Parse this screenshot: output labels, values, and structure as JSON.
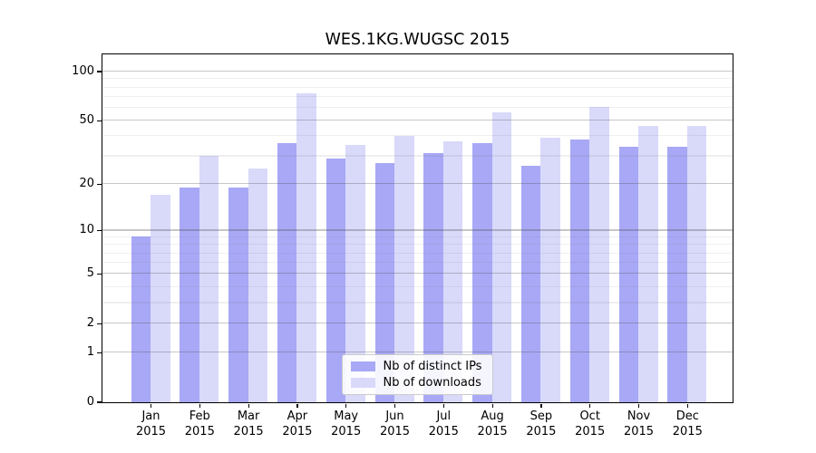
{
  "chart_data": {
    "type": "bar",
    "title": "WES.1KG.WUGSC 2015",
    "categories": [
      "Jan 2015",
      "Feb 2015",
      "Mar 2015",
      "Apr 2015",
      "May 2015",
      "Jun 2015",
      "Jul 2015",
      "Aug 2015",
      "Sep 2015",
      "Oct 2015",
      "Nov 2015",
      "Dec 2015"
    ],
    "months": [
      {
        "month": "Jan",
        "year": "2015"
      },
      {
        "month": "Feb",
        "year": "2015"
      },
      {
        "month": "Mar",
        "year": "2015"
      },
      {
        "month": "Apr",
        "year": "2015"
      },
      {
        "month": "May",
        "year": "2015"
      },
      {
        "month": "Jun",
        "year": "2015"
      },
      {
        "month": "Jul",
        "year": "2015"
      },
      {
        "month": "Aug",
        "year": "2015"
      },
      {
        "month": "Sep",
        "year": "2015"
      },
      {
        "month": "Oct",
        "year": "2015"
      },
      {
        "month": "Nov",
        "year": "2015"
      },
      {
        "month": "Dec",
        "year": "2015"
      }
    ],
    "series": [
      {
        "name": "Nb of distinct IPs",
        "color": "#a8a8f6",
        "values": [
          9,
          19,
          19,
          36,
          29,
          27,
          31,
          36,
          26,
          38,
          34,
          34
        ]
      },
      {
        "name": "Nb of downloads",
        "color": "#d9d9fa",
        "values": [
          17,
          30,
          25,
          73,
          35,
          40,
          37,
          56,
          39,
          60,
          46,
          46
        ]
      }
    ],
    "y_axis": {
      "scale": "log1p",
      "ticks": [
        0,
        1,
        2,
        5,
        10,
        20,
        50,
        100
      ],
      "minor_ticks": [
        3,
        4,
        6,
        7,
        8,
        9,
        30,
        40,
        60,
        70,
        80,
        90
      ],
      "range": [
        0,
        127
      ]
    },
    "x_axis": {
      "label": ""
    },
    "legend": {
      "position": "lower center"
    },
    "grid": true,
    "colors": {
      "spine": "#000000",
      "major_grid": "#c6c6c6",
      "minor_grid": "#ececec",
      "background": "#ffffff"
    }
  }
}
